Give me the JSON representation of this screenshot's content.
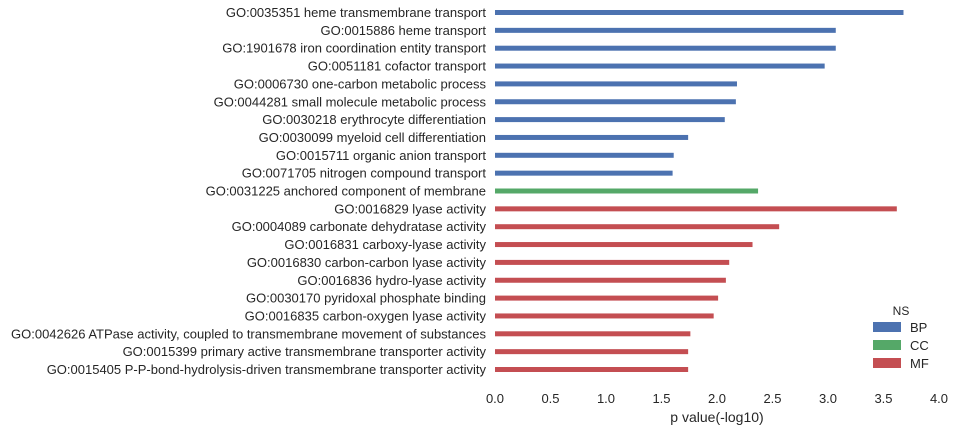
{
  "chart_data": {
    "type": "bar",
    "orientation": "horizontal",
    "xlabel": "p value(-log10)",
    "ylabel": "",
    "xlim": [
      0.0,
      4.0
    ],
    "xticks": [
      "0.0",
      "0.5",
      "1.0",
      "1.5",
      "2.0",
      "2.5",
      "3.0",
      "3.5",
      "4.0"
    ],
    "grid": false,
    "legend": {
      "title": "NS",
      "position": "bottom-right",
      "entries": [
        {
          "name": "BP",
          "color": "#4c72b0"
        },
        {
          "name": "CC",
          "color": "#55a868"
        },
        {
          "name": "MF",
          "color": "#c44e52"
        }
      ]
    },
    "bars": [
      {
        "label": "GO:0035351 heme transmembrane transport",
        "ns": "BP",
        "value": 3.68
      },
      {
        "label": "GO:0015886 heme transport",
        "ns": "BP",
        "value": 3.07
      },
      {
        "label": "GO:1901678 iron coordination entity transport",
        "ns": "BP",
        "value": 3.07
      },
      {
        "label": "GO:0051181 cofactor transport",
        "ns": "BP",
        "value": 2.97
      },
      {
        "label": "GO:0006730 one-carbon metabolic process",
        "ns": "BP",
        "value": 2.18
      },
      {
        "label": "GO:0044281 small molecule metabolic process",
        "ns": "BP",
        "value": 2.17
      },
      {
        "label": "GO:0030218 erythrocyte differentiation",
        "ns": "BP",
        "value": 2.07
      },
      {
        "label": "GO:0030099 myeloid cell differentiation",
        "ns": "BP",
        "value": 1.74
      },
      {
        "label": "GO:0015711 organic anion transport",
        "ns": "BP",
        "value": 1.61
      },
      {
        "label": "GO:0071705 nitrogen compound transport",
        "ns": "BP",
        "value": 1.6
      },
      {
        "label": "GO:0031225 anchored component of membrane",
        "ns": "CC",
        "value": 2.37
      },
      {
        "label": "GO:0016829 lyase activity",
        "ns": "MF",
        "value": 3.62
      },
      {
        "label": "GO:0004089 carbonate dehydratase activity",
        "ns": "MF",
        "value": 2.56
      },
      {
        "label": "GO:0016831 carboxy-lyase activity",
        "ns": "MF",
        "value": 2.32
      },
      {
        "label": "GO:0016830 carbon-carbon lyase activity",
        "ns": "MF",
        "value": 2.11
      },
      {
        "label": "GO:0016836 hydro-lyase activity",
        "ns": "MF",
        "value": 2.08
      },
      {
        "label": "GO:0030170 pyridoxal phosphate binding",
        "ns": "MF",
        "value": 2.01
      },
      {
        "label": "GO:0016835 carbon-oxygen lyase activity",
        "ns": "MF",
        "value": 1.97
      },
      {
        "label": "GO:0042626 ATPase activity, coupled to transmembrane movement of substances",
        "ns": "MF",
        "value": 1.76
      },
      {
        "label": "GO:0015399 primary active transmembrane transporter activity",
        "ns": "MF",
        "value": 1.74
      },
      {
        "label": "GO:0015405 P-P-bond-hydrolysis-driven transmembrane transporter activity",
        "ns": "MF",
        "value": 1.74
      }
    ]
  }
}
